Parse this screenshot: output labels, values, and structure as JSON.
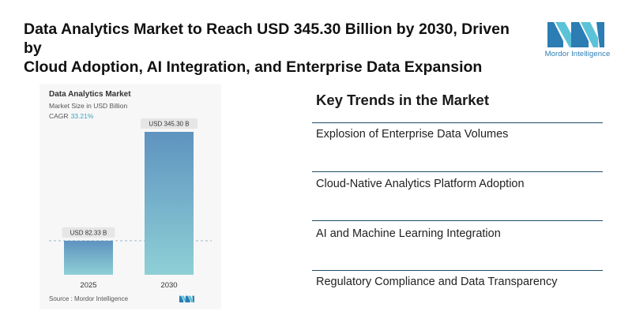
{
  "headline": {
    "line1": "Data Analytics Market to Reach USD 345.30 Billion by 2030, Driven by",
    "line2": "Cloud Adoption, AI Integration, and Enterprise Data Expansion"
  },
  "brand": {
    "name": "Mordor Intelligence",
    "color": "#2b7db3"
  },
  "chart_data": {
    "type": "bar",
    "title": "Data Analytics Market",
    "subtitle": "Market Size in USD Billion",
    "cagr_label": "CAGR",
    "cagr_value": "33.21%",
    "categories": [
      "2025",
      "2030"
    ],
    "values": [
      82.33,
      345.3
    ],
    "data_labels": [
      "USD 82.33 B",
      "USD 345.30 B"
    ],
    "ylim": [
      0,
      345.3
    ],
    "colors": {
      "bar_top": "#5e93bf",
      "bar_bottom": "#8ed0d6",
      "accent": "#3ba6c0"
    },
    "source": "Source :  Mordor Intelligence"
  },
  "trends": {
    "title": "Key Trends in the Market",
    "items": [
      "Explosion of Enterprise Data Volumes",
      "Cloud-Native Analytics Platform Adoption",
      "AI and Machine Learning Integration",
      "Regulatory Compliance and Data Transparency"
    ]
  }
}
